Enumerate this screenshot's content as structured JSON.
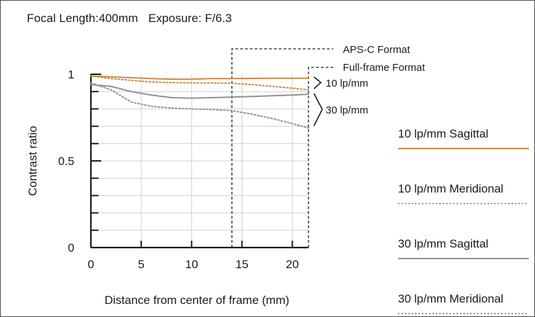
{
  "header": {
    "focal_length": "Focal Length:400mm",
    "exposure": "Exposure: F/6.3"
  },
  "chart_data": {
    "type": "line",
    "xlabel": "Distance from center of frame (mm)",
    "ylabel": "Contrast ratio",
    "xlim": [
      0,
      21.6
    ],
    "ylim": [
      0,
      1
    ],
    "x_ticks": [
      0,
      5,
      10,
      15,
      20
    ],
    "y_ticks": [
      0,
      0.5,
      1
    ],
    "y_tick_labels": [
      "0",
      "0.5",
      "1"
    ],
    "grid": true,
    "format_markers": [
      {
        "name": "APS-C Format",
        "x": 14.0
      },
      {
        "name": "Full-frame Format",
        "x": 21.6
      }
    ],
    "bracket_labels": [
      "10 lp/mm",
      "30 lp/mm"
    ],
    "series": [
      {
        "name": "10 lp/mm Sagittal",
        "color": "#c8894a",
        "dash": "solid",
        "points": [
          [
            0,
            0.99
          ],
          [
            2,
            0.985
          ],
          [
            4,
            0.98
          ],
          [
            6,
            0.975
          ],
          [
            8,
            0.972
          ],
          [
            10,
            0.972
          ],
          [
            12,
            0.975
          ],
          [
            14,
            0.975
          ],
          [
            16,
            0.976
          ],
          [
            18,
            0.977
          ],
          [
            20,
            0.977
          ],
          [
            21.6,
            0.977
          ]
        ]
      },
      {
        "name": "10 lp/mm Meridional",
        "color": "#c8894a",
        "dash": "dotted",
        "points": [
          [
            0,
            0.99
          ],
          [
            2,
            0.975
          ],
          [
            4,
            0.965
          ],
          [
            6,
            0.955
          ],
          [
            8,
            0.952
          ],
          [
            10,
            0.95
          ],
          [
            12,
            0.95
          ],
          [
            14,
            0.948
          ],
          [
            16,
            0.94
          ],
          [
            18,
            0.93
          ],
          [
            20,
            0.92
          ],
          [
            21.6,
            0.91
          ]
        ]
      },
      {
        "name": "30 lp/mm Sagittal",
        "color": "#8f8f8f",
        "dash": "solid",
        "points": [
          [
            0,
            0.94
          ],
          [
            2,
            0.93
          ],
          [
            4,
            0.9
          ],
          [
            6,
            0.88
          ],
          [
            8,
            0.865
          ],
          [
            10,
            0.862
          ],
          [
            12,
            0.865
          ],
          [
            14,
            0.868
          ],
          [
            16,
            0.872
          ],
          [
            18,
            0.876
          ],
          [
            20,
            0.88
          ],
          [
            21.6,
            0.885
          ]
        ]
      },
      {
        "name": "30 lp/mm Meridional",
        "color": "#8f8f8f",
        "dash": "dotted",
        "points": [
          [
            0,
            0.95
          ],
          [
            2,
            0.91
          ],
          [
            4,
            0.84
          ],
          [
            6,
            0.815
          ],
          [
            8,
            0.805
          ],
          [
            10,
            0.8
          ],
          [
            12,
            0.797
          ],
          [
            14,
            0.79
          ],
          [
            16,
            0.77
          ],
          [
            18,
            0.745
          ],
          [
            20,
            0.715
          ],
          [
            21.6,
            0.69
          ]
        ]
      }
    ],
    "legend_position": "right"
  }
}
